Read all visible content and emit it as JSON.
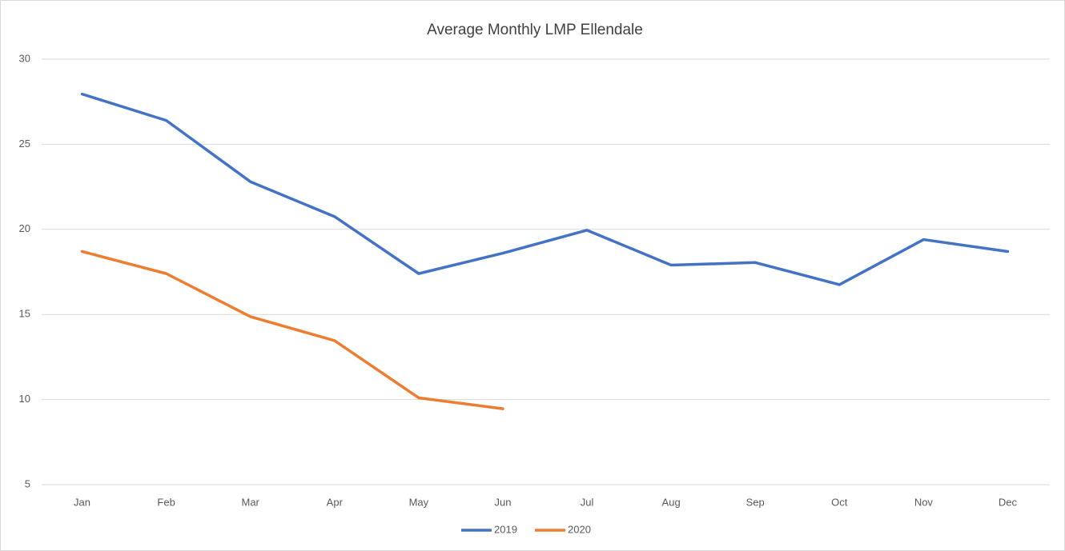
{
  "chart_data": {
    "type": "line",
    "title": "Average Monthly LMP Ellendale",
    "categories": [
      "Jan",
      "Feb",
      "Mar",
      "Apr",
      "May",
      "Jun",
      "Jul",
      "Aug",
      "Sep",
      "Oct",
      "Nov",
      "Dec"
    ],
    "series": [
      {
        "name": "2019",
        "color": "#4472c4",
        "values": [
          27.95,
          26.4,
          22.8,
          20.75,
          17.4,
          18.6,
          19.95,
          17.9,
          18.05,
          16.75,
          19.4,
          18.7
        ]
      },
      {
        "name": "2020",
        "color": "#ed7d31",
        "values": [
          18.7,
          17.4,
          14.87,
          13.46,
          10.1,
          9.46,
          null,
          null,
          null,
          null,
          null,
          null
        ]
      }
    ],
    "ylim": [
      5,
      30
    ],
    "yticks": [
      5,
      10,
      15,
      20,
      25,
      30
    ],
    "grid": true,
    "legend": "bottom"
  }
}
